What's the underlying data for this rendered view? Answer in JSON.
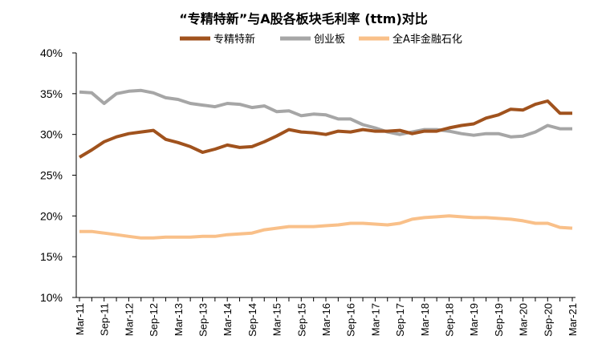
{
  "chart_data": {
    "type": "line",
    "title": "“专精特新”与A股各板块毛利率 (ttm)对比",
    "xlabel": "",
    "ylabel": "",
    "ylim": [
      0.1,
      0.4
    ],
    "yticks": [
      "40%",
      "35%",
      "30%",
      "25%",
      "20%",
      "15%",
      "10%"
    ],
    "ytick_values": [
      0.4,
      0.35,
      0.3,
      0.25,
      0.2,
      0.15,
      0.1
    ],
    "x": [
      "Mar-11",
      "Jun-11",
      "Sep-11",
      "Dec-11",
      "Mar-12",
      "Jun-12",
      "Sep-12",
      "Dec-12",
      "Mar-13",
      "Jun-13",
      "Sep-13",
      "Dec-13",
      "Mar-14",
      "Jun-14",
      "Sep-14",
      "Dec-14",
      "Mar-15",
      "Jun-15",
      "Sep-15",
      "Dec-15",
      "Mar-16",
      "Jun-16",
      "Sep-16",
      "Dec-16",
      "Mar-17",
      "Jun-17",
      "Sep-17",
      "Dec-17",
      "Mar-18",
      "Jun-18",
      "Sep-18",
      "Dec-18",
      "Mar-19",
      "Jun-19",
      "Sep-19",
      "Dec-19",
      "Mar-20",
      "Jun-20",
      "Sep-20",
      "Dec-20",
      "Mar-21"
    ],
    "xtick_labels": [
      "Mar-11",
      "Sep-11",
      "Mar-12",
      "Sep-12",
      "Mar-13",
      "Sep-13",
      "Mar-14",
      "Sep-14",
      "Mar-15",
      "Sep-15",
      "Mar-16",
      "Sep-16",
      "Mar-17",
      "Sep-17",
      "Mar-18",
      "Sep-18",
      "Mar-19",
      "Sep-19",
      "Mar-20",
      "Sep-20",
      "Mar-21"
    ],
    "grid": false,
    "legend_position": "top-center",
    "series": [
      {
        "name": "专精特新",
        "color": "#A0521D",
        "values": [
          0.272,
          0.281,
          0.291,
          0.297,
          0.301,
          0.303,
          0.305,
          0.294,
          0.29,
          0.285,
          0.278,
          0.282,
          0.287,
          0.284,
          0.285,
          0.291,
          0.298,
          0.306,
          0.303,
          0.302,
          0.3,
          0.304,
          0.303,
          0.306,
          0.304,
          0.304,
          0.305,
          0.301,
          0.304,
          0.304,
          0.308,
          0.311,
          0.313,
          0.32,
          0.324,
          0.331,
          0.33,
          0.337,
          0.341,
          0.326,
          0.326
        ]
      },
      {
        "name": "创业板",
        "color": "#A6A6A6",
        "values": [
          0.352,
          0.351,
          0.338,
          0.35,
          0.353,
          0.354,
          0.351,
          0.345,
          0.343,
          0.338,
          0.336,
          0.334,
          0.338,
          0.337,
          0.333,
          0.335,
          0.328,
          0.329,
          0.323,
          0.325,
          0.324,
          0.319,
          0.319,
          0.312,
          0.308,
          0.303,
          0.3,
          0.303,
          0.306,
          0.306,
          0.304,
          0.301,
          0.299,
          0.301,
          0.301,
          0.297,
          0.298,
          0.303,
          0.311,
          0.307,
          0.307
        ]
      },
      {
        "name": "全A非金融石化",
        "color": "#F9C089",
        "values": [
          0.181,
          0.181,
          0.179,
          0.177,
          0.175,
          0.173,
          0.173,
          0.174,
          0.174,
          0.174,
          0.175,
          0.175,
          0.177,
          0.178,
          0.179,
          0.183,
          0.185,
          0.187,
          0.187,
          0.187,
          0.188,
          0.189,
          0.191,
          0.191,
          0.19,
          0.189,
          0.191,
          0.196,
          0.198,
          0.199,
          0.2,
          0.199,
          0.198,
          0.198,
          0.197,
          0.196,
          0.194,
          0.191,
          0.191,
          0.186,
          0.185
        ]
      }
    ]
  }
}
